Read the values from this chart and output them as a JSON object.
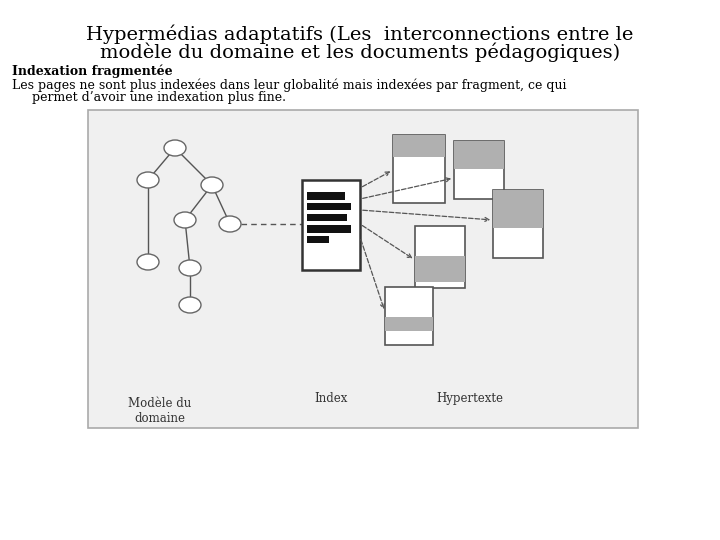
{
  "title_line1": "Hypermédias adaptatifs (Les  interconnections entre le",
  "title_line2": "modèle du domaine et les documents pédagogiques)",
  "subtitle_bold": "Indexation fragmentée",
  "body_text1": "Les pages ne sont plus indexées dans leur globalité mais indexées par fragment, ce qui",
  "body_text2": "     permet d’avoir une indexation plus fine.",
  "label_modele": "Modèle du\ndomaine",
  "label_index": "Index",
  "label_hypertexte": "Hypertexte",
  "bg_color": "#ffffff",
  "diagram_bg": "#f0f0f0",
  "diagram_edge": "#aaaaaa",
  "node_edge": "#666666",
  "node_fill": "#ffffff",
  "line_color": "#555555",
  "index_border": "#333333",
  "bar_color": "#111111",
  "page_edge": "#555555",
  "page_fill": "#ffffff",
  "gray_band": "#b0b0b0",
  "arrow_color": "#555555"
}
